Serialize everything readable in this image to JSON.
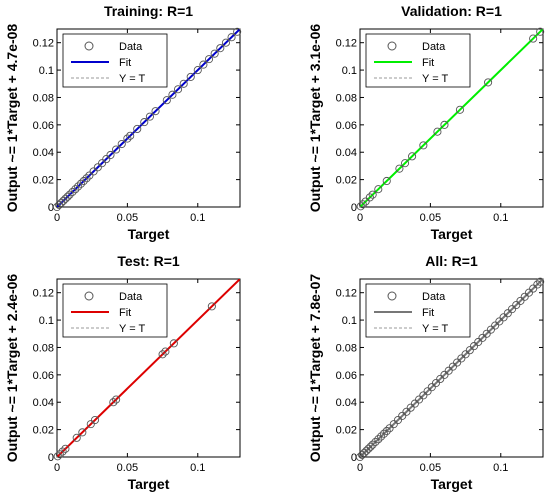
{
  "chart_data": [
    {
      "type": "scatter",
      "title": "Training: R=1",
      "xlabel": "Target",
      "ylabel": "Output ~= 1*Target + 4.7e-08",
      "xlim": [
        0,
        0.13
      ],
      "ylim": [
        0,
        0.13
      ],
      "xticks": [
        {
          "value": 0,
          "label": "0"
        },
        {
          "value": 0.05,
          "label": "0.05"
        },
        {
          "value": 0.1,
          "label": "0.1"
        }
      ],
      "yticks": [
        {
          "value": 0,
          "label": "0"
        },
        {
          "value": 0.02,
          "label": "0.02"
        },
        {
          "value": 0.04,
          "label": "0.04"
        },
        {
          "value": 0.06,
          "label": "0.06"
        },
        {
          "value": 0.08,
          "label": "0.08"
        },
        {
          "value": 0.1,
          "label": "0.1"
        },
        {
          "value": 0.12,
          "label": "0.12"
        }
      ],
      "fit_color": "#0000cc",
      "legend": {
        "position": "top-left",
        "entries": [
          "Data",
          "Fit",
          "Y = T"
        ]
      },
      "fit": {
        "slope": 1,
        "intercept": 4.7e-08
      },
      "points": [
        0.0,
        0.0015,
        0.003,
        0.0045,
        0.006,
        0.0075,
        0.009,
        0.011,
        0.013,
        0.015,
        0.017,
        0.019,
        0.021,
        0.023,
        0.026,
        0.029,
        0.032,
        0.035,
        0.038,
        0.042,
        0.046,
        0.05,
        0.052,
        0.057,
        0.062,
        0.066,
        0.07,
        0.078,
        0.082,
        0.086,
        0.09,
        0.095,
        0.1,
        0.104,
        0.108,
        0.112,
        0.116,
        0.12,
        0.124,
        0.128
      ]
    },
    {
      "type": "scatter",
      "title": "Validation: R=1",
      "xlabel": "Target",
      "ylabel": "Output ~= 1*Target + 3.1e-06",
      "xlim": [
        0,
        0.13
      ],
      "ylim": [
        0,
        0.13
      ],
      "xticks": [
        {
          "value": 0,
          "label": "0"
        },
        {
          "value": 0.05,
          "label": "0.05"
        },
        {
          "value": 0.1,
          "label": "0.1"
        }
      ],
      "yticks": [
        {
          "value": 0,
          "label": "0"
        },
        {
          "value": 0.02,
          "label": "0.02"
        },
        {
          "value": 0.04,
          "label": "0.04"
        },
        {
          "value": 0.06,
          "label": "0.06"
        },
        {
          "value": 0.08,
          "label": "0.08"
        },
        {
          "value": 0.1,
          "label": "0.1"
        },
        {
          "value": 0.12,
          "label": "0.12"
        }
      ],
      "fit_color": "#00ee00",
      "legend": {
        "position": "top-left",
        "entries": [
          "Data",
          "Fit",
          "Y = T"
        ]
      },
      "fit": {
        "slope": 1,
        "intercept": 3.1e-06
      },
      "points": [
        0.0005,
        0.002,
        0.004,
        0.007,
        0.009,
        0.013,
        0.019,
        0.028,
        0.032,
        0.037,
        0.045,
        0.055,
        0.06,
        0.071,
        0.091,
        0.123,
        0.128
      ]
    },
    {
      "type": "scatter",
      "title": "Test: R=1",
      "xlabel": "Target",
      "ylabel": "Output ~= 1*Target + 2.4e-06",
      "xlim": [
        0,
        0.13
      ],
      "ylim": [
        0,
        0.13
      ],
      "xticks": [
        {
          "value": 0,
          "label": "0"
        },
        {
          "value": 0.05,
          "label": "0.05"
        },
        {
          "value": 0.1,
          "label": "0.1"
        }
      ],
      "yticks": [
        {
          "value": 0,
          "label": "0"
        },
        {
          "value": 0.02,
          "label": "0.02"
        },
        {
          "value": 0.04,
          "label": "0.04"
        },
        {
          "value": 0.06,
          "label": "0.06"
        },
        {
          "value": 0.08,
          "label": "0.08"
        },
        {
          "value": 0.1,
          "label": "0.1"
        },
        {
          "value": 0.12,
          "label": "0.12"
        }
      ],
      "fit_color": "#dd0000",
      "legend": {
        "position": "top-left",
        "entries": [
          "Data",
          "Fit",
          "Y = T"
        ]
      },
      "fit": {
        "slope": 1,
        "intercept": 2.4e-06
      },
      "points": [
        0.0005,
        0.002,
        0.004,
        0.006,
        0.014,
        0.018,
        0.024,
        0.027,
        0.04,
        0.042,
        0.075,
        0.077,
        0.083,
        0.11
      ]
    },
    {
      "type": "scatter",
      "title": "All: R=1",
      "xlabel": "Target",
      "ylabel": "Output ~= 1*Target + 7.8e-07",
      "xlim": [
        0,
        0.13
      ],
      "ylim": [
        0,
        0.13
      ],
      "xticks": [
        {
          "value": 0,
          "label": "0"
        },
        {
          "value": 0.05,
          "label": "0.05"
        },
        {
          "value": 0.1,
          "label": "0.1"
        }
      ],
      "yticks": [
        {
          "value": 0,
          "label": "0"
        },
        {
          "value": 0.02,
          "label": "0.02"
        },
        {
          "value": 0.04,
          "label": "0.04"
        },
        {
          "value": 0.06,
          "label": "0.06"
        },
        {
          "value": 0.08,
          "label": "0.08"
        },
        {
          "value": 0.1,
          "label": "0.1"
        },
        {
          "value": 0.12,
          "label": "0.12"
        }
      ],
      "fit_color": "#777777",
      "legend": {
        "position": "top-left",
        "entries": [
          "Data",
          "Fit",
          "Y = T"
        ]
      },
      "fit": {
        "slope": 1,
        "intercept": 7.8e-07
      },
      "points": [
        0.0,
        0.0015,
        0.003,
        0.0045,
        0.006,
        0.0075,
        0.009,
        0.011,
        0.013,
        0.015,
        0.017,
        0.019,
        0.021,
        0.024,
        0.027,
        0.03,
        0.033,
        0.036,
        0.039,
        0.042,
        0.045,
        0.048,
        0.051,
        0.054,
        0.057,
        0.06,
        0.063,
        0.066,
        0.069,
        0.072,
        0.075,
        0.078,
        0.081,
        0.084,
        0.087,
        0.09,
        0.093,
        0.096,
        0.099,
        0.102,
        0.105,
        0.108,
        0.111,
        0.114,
        0.117,
        0.12,
        0.123,
        0.126,
        0.128
      ]
    }
  ]
}
